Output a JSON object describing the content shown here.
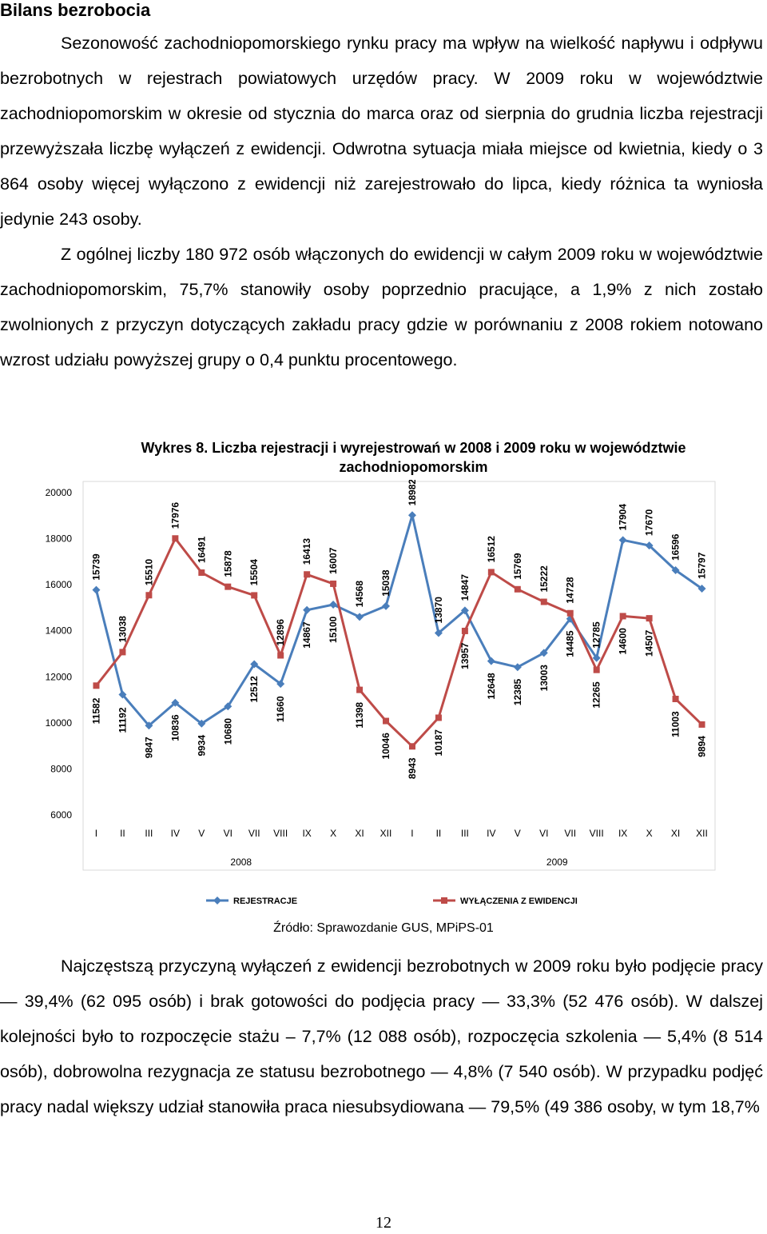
{
  "heading": "Bilans bezrobocia",
  "paragraph1": "Sezonowość zachodniopomorskiego rynku pracy ma wpływ na wielkość napływu i odpływu bezrobotnych w rejestrach powiatowych urzędów pracy. W 2009 roku w województwie zachodniopomorskim w okresie od stycznia do marca oraz od sierpnia do grudnia liczba rejestracji przewyższała liczbę wyłączeń z ewidencji. Odwrotna sytuacja miała miejsce od kwietnia, kiedy o 3 864 osoby więcej wyłączono z ewidencji niż zarejestrowało do lipca, kiedy różnica ta wyniosła jedynie 243 osoby.",
  "paragraph2": "Z ogólnej liczby 180 972 osób włączonych do ewidencji w całym 2009 roku w województwie zachodniopomorskim, 75,7% stanowiły osoby poprzednio pracujące, a 1,9% z nich zostało zwolnionych z przyczyn dotyczących zakładu pracy gdzie w porównaniu z 2008 rokiem notowano wzrost udziału powyższej grupy o 0,4 punktu procentowego.",
  "chart_data": {
    "type": "line",
    "title": "Wykres 8. Liczba rejestracji i wyrejestrowań w 2008 i 2009 roku w województwie zachodniopomorskim",
    "categories": [
      "I",
      "II",
      "III",
      "IV",
      "V",
      "VI",
      "VII",
      "VIII",
      "IX",
      "X",
      "XI",
      "XII",
      "I",
      "II",
      "III",
      "IV",
      "V",
      "VI",
      "VII",
      "VIII",
      "IX",
      "X",
      "XI",
      "XII"
    ],
    "year_labels": [
      "2008",
      "2009"
    ],
    "ylim": [
      6000,
      20000
    ],
    "yticks": [
      "6000",
      "8000",
      "10000",
      "12000",
      "14000",
      "16000",
      "18000",
      "20000"
    ],
    "legend_position": "bottom",
    "series": [
      {
        "name": "REJESTRACJE",
        "color": "#4a7ebb",
        "values": [
          15739,
          11192,
          9847,
          10836,
          9934,
          10680,
          12512,
          11660,
          14867,
          15100,
          14568,
          15038,
          18982,
          13870,
          14847,
          12648,
          12385,
          13003,
          14485,
          12785,
          17904,
          17670,
          16596,
          15797
        ]
      },
      {
        "name": "WYŁĄCZENIA Z EWIDENCJI",
        "color": "#be4b48",
        "values": [
          11582,
          13038,
          15510,
          17976,
          16491,
          15878,
          15504,
          12896,
          16413,
          16007,
          11398,
          10046,
          8943,
          10187,
          13957,
          16512,
          15769,
          15222,
          14728,
          12265,
          14600,
          14507,
          11003,
          9894
        ]
      }
    ]
  },
  "source": "Źródło: Sprawozdanie GUS, MPiPS-01",
  "paragraph3": "Najczęstszą przyczyną wyłączeń z ewidencji bezrobotnych w 2009 roku było podjęcie pracy — 39,4% (62 095 osób) i brak gotowości do podjęcia pracy — 33,3% (52 476 osób). W dalszej kolejności było to rozpoczęcie stażu – 7,7% (12 088 osób), rozpoczęcia szkolenia — 5,4% (8 514 osób), dobrowolna rezygnacja ze statusu bezrobotnego — 4,8% (7 540 osób). W przypadku podjęć pracy nadal większy udział stanowiła praca niesubsydiowana — 79,5% (49 386 osoby, w tym 18,7%",
  "page_number": "12"
}
